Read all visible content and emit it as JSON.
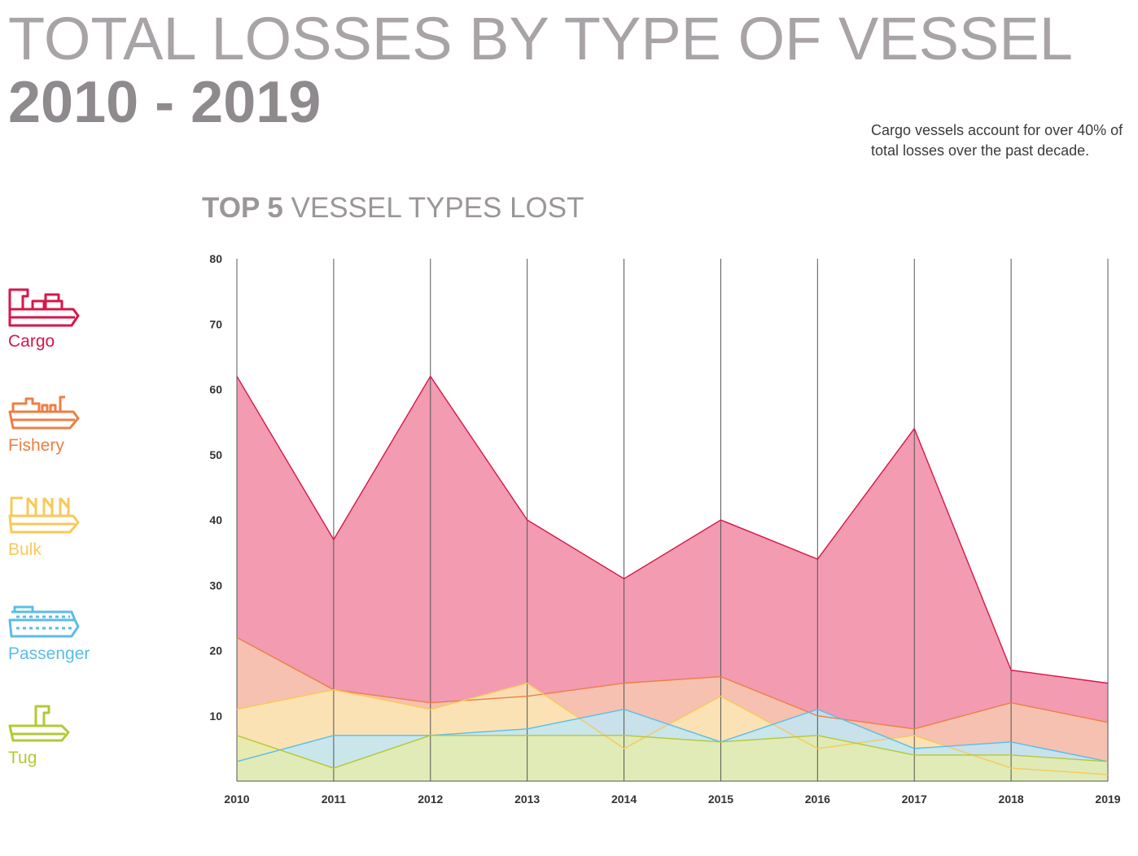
{
  "header": {
    "title_line1": "TOTAL LOSSES BY TYPE OF VESSEL",
    "title_line2": "2010 - 2019",
    "note": "Cargo vessels account for over 40% of total losses over the past decade."
  },
  "chart_title": {
    "bold": "TOP 5",
    "light": "VESSEL TYPES LOST"
  },
  "legend": [
    {
      "label": "Cargo",
      "icon": "cargo-ship-icon",
      "color": "#d6174a"
    },
    {
      "label": "Fishery",
      "icon": "fishing-vessel-icon",
      "color": "#ec7f46"
    },
    {
      "label": "Bulk",
      "icon": "bulk-carrier-icon",
      "color": "#f7c95a"
    },
    {
      "label": "Passenger",
      "icon": "passenger-ship-icon",
      "color": "#5bbde6"
    },
    {
      "label": "Tug",
      "icon": "tug-icon",
      "color": "#b4c835"
    }
  ],
  "chart_data": {
    "type": "area",
    "x": [
      "2010",
      "2011",
      "2012",
      "2013",
      "2014",
      "2015",
      "2016",
      "2017",
      "2018",
      "2019"
    ],
    "ylim": [
      0,
      80
    ],
    "yticks": [
      10,
      20,
      30,
      40,
      50,
      60,
      70,
      80
    ],
    "grid": "vertical lines at each year",
    "series": [
      {
        "name": "Cargo",
        "color": "#d6174a",
        "fill": "#f29bb1",
        "values": [
          62,
          37,
          62,
          40,
          31,
          40,
          34,
          54,
          17,
          15
        ]
      },
      {
        "name": "Fishery",
        "color": "#ec7f46",
        "fill": "#f7c8b0",
        "values": [
          22,
          14,
          12,
          13,
          15,
          16,
          10,
          8,
          12,
          9
        ]
      },
      {
        "name": "Bulk",
        "color": "#f7c95a",
        "fill": "#fbe7b5",
        "values": [
          11,
          14,
          11,
          15,
          5,
          13,
          5,
          7,
          2,
          1
        ]
      },
      {
        "name": "Passenger",
        "color": "#5bbde6",
        "fill": "#bfe6f5",
        "values": [
          3,
          7,
          7,
          8,
          11,
          6,
          11,
          5,
          6,
          3
        ]
      },
      {
        "name": "Tug",
        "color": "#b4c835",
        "fill": "#e4ebae",
        "values": [
          7,
          2,
          7,
          7,
          7,
          6,
          7,
          4,
          4,
          3
        ]
      }
    ]
  }
}
